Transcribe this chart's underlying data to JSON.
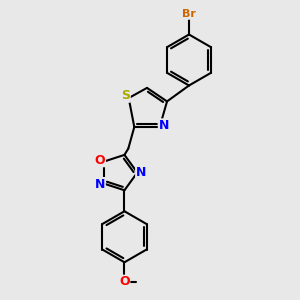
{
  "bg_color": "#e8e8e8",
  "bond_color": "#000000",
  "S_color": "#aaaa00",
  "N_color": "#0000ff",
  "O_color": "#ff0000",
  "Br_color": "#cc6600",
  "bond_width": 1.5,
  "dbo": 0.09,
  "font_size": 9,
  "figsize": [
    3.0,
    3.0
  ],
  "dpi": 100,
  "xlim": [
    0,
    10
  ],
  "ylim": [
    0,
    10
  ]
}
